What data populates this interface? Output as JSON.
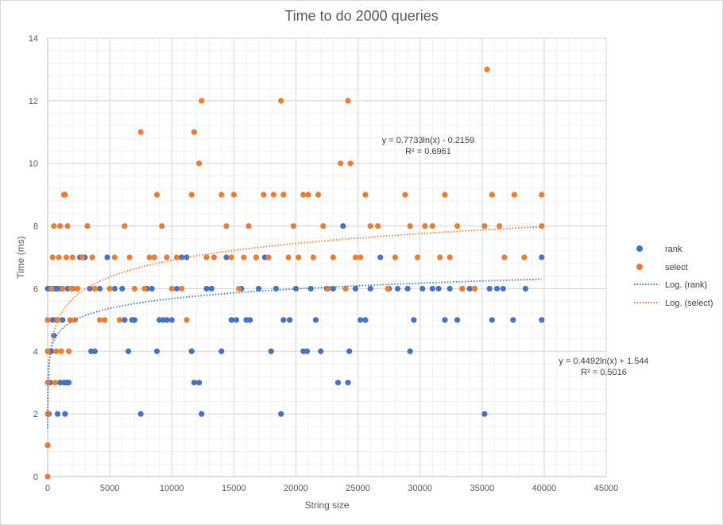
{
  "chart_data": {
    "type": "scatter",
    "title": "Time to do 2000 queries",
    "xlabel": "String size",
    "ylabel": "Time (ms)",
    "xlim": [
      0,
      45000
    ],
    "ylim": [
      0,
      14
    ],
    "x_ticks": [
      0,
      5000,
      10000,
      15000,
      20000,
      25000,
      30000,
      35000,
      40000,
      45000
    ],
    "y_ticks": [
      0,
      2,
      4,
      6,
      8,
      10,
      12,
      14
    ],
    "grid": true,
    "legend_position": "right",
    "colors": {
      "rank": "#4472c4",
      "select": "#ed7d31"
    },
    "series": [
      {
        "name": "rank",
        "color": "#4472c4",
        "points": [
          [
            0,
            1
          ],
          [
            0,
            2
          ],
          [
            0,
            3
          ],
          [
            0,
            4
          ],
          [
            0,
            5
          ],
          [
            0,
            6
          ],
          [
            100,
            2
          ],
          [
            200,
            3
          ],
          [
            300,
            4
          ],
          [
            400,
            5
          ],
          [
            500,
            4.5
          ],
          [
            600,
            6
          ],
          [
            700,
            5
          ],
          [
            800,
            2
          ],
          [
            1000,
            3
          ],
          [
            1200,
            5
          ],
          [
            1300,
            3
          ],
          [
            1500,
            3
          ],
          [
            1600,
            3
          ],
          [
            1700,
            3
          ],
          [
            1400,
            2
          ],
          [
            200,
            6
          ],
          [
            400,
            6
          ],
          [
            800,
            6
          ],
          [
            1100,
            6
          ],
          [
            1600,
            6
          ],
          [
            2000,
            6
          ],
          [
            2400,
            6
          ],
          [
            2600,
            7
          ],
          [
            3000,
            7
          ],
          [
            3400,
            6
          ],
          [
            3500,
            4
          ],
          [
            3800,
            4
          ],
          [
            4200,
            6
          ],
          [
            4800,
            7
          ],
          [
            5400,
            6
          ],
          [
            6000,
            6
          ],
          [
            6200,
            5
          ],
          [
            6500,
            4
          ],
          [
            6800,
            5
          ],
          [
            7000,
            5
          ],
          [
            7500,
            2
          ],
          [
            8000,
            6
          ],
          [
            8400,
            6
          ],
          [
            8800,
            4
          ],
          [
            9000,
            5
          ],
          [
            9300,
            5
          ],
          [
            9600,
            5
          ],
          [
            10000,
            5
          ],
          [
            10400,
            6
          ],
          [
            10800,
            7
          ],
          [
            11200,
            7
          ],
          [
            11600,
            4
          ],
          [
            11800,
            3
          ],
          [
            12200,
            3
          ],
          [
            12400,
            2
          ],
          [
            12800,
            6
          ],
          [
            13200,
            6
          ],
          [
            14000,
            4
          ],
          [
            14400,
            7
          ],
          [
            14800,
            5
          ],
          [
            15200,
            5
          ],
          [
            15600,
            6
          ],
          [
            16000,
            5
          ],
          [
            16300,
            5
          ],
          [
            17000,
            6
          ],
          [
            17500,
            7
          ],
          [
            18000,
            4
          ],
          [
            18400,
            6
          ],
          [
            18800,
            2
          ],
          [
            19000,
            5
          ],
          [
            19500,
            5
          ],
          [
            20000,
            6
          ],
          [
            20600,
            4
          ],
          [
            20900,
            4
          ],
          [
            21200,
            6
          ],
          [
            21600,
            5
          ],
          [
            22000,
            4
          ],
          [
            22500,
            6
          ],
          [
            23000,
            6
          ],
          [
            23400,
            3
          ],
          [
            23800,
            8
          ],
          [
            24200,
            3
          ],
          [
            24300,
            4
          ],
          [
            24800,
            6
          ],
          [
            25200,
            5
          ],
          [
            25600,
            5
          ],
          [
            26000,
            6
          ],
          [
            26800,
            7
          ],
          [
            27500,
            6
          ],
          [
            28200,
            6
          ],
          [
            29000,
            6
          ],
          [
            29200,
            4
          ],
          [
            29500,
            5
          ],
          [
            30200,
            6
          ],
          [
            31000,
            6
          ],
          [
            31500,
            6
          ],
          [
            32000,
            5
          ],
          [
            32400,
            6
          ],
          [
            33000,
            5
          ],
          [
            33400,
            6
          ],
          [
            34000,
            6
          ],
          [
            35200,
            2
          ],
          [
            35600,
            6
          ],
          [
            35800,
            5
          ],
          [
            36200,
            6
          ],
          [
            36700,
            6
          ],
          [
            37500,
            5
          ],
          [
            38500,
            6
          ],
          [
            39800,
            7
          ],
          [
            39800,
            5
          ]
        ]
      },
      {
        "name": "select",
        "color": "#ed7d31",
        "points": [
          [
            0,
            0
          ],
          [
            0,
            1
          ],
          [
            0,
            2
          ],
          [
            0,
            3
          ],
          [
            0,
            4
          ],
          [
            0,
            5
          ],
          [
            300,
            6
          ],
          [
            400,
            7
          ],
          [
            500,
            8
          ],
          [
            600,
            3
          ],
          [
            700,
            4
          ],
          [
            800,
            5
          ],
          [
            900,
            7
          ],
          [
            1000,
            8
          ],
          [
            1100,
            4
          ],
          [
            1200,
            6
          ],
          [
            1300,
            9
          ],
          [
            1400,
            9
          ],
          [
            1500,
            7
          ],
          [
            1600,
            8
          ],
          [
            1700,
            4
          ],
          [
            1800,
            5
          ],
          [
            1900,
            6
          ],
          [
            2000,
            7
          ],
          [
            2200,
            5
          ],
          [
            2400,
            6
          ],
          [
            2800,
            7
          ],
          [
            3200,
            8
          ],
          [
            3600,
            7
          ],
          [
            3800,
            6
          ],
          [
            4200,
            5
          ],
          [
            4600,
            5
          ],
          [
            5000,
            6
          ],
          [
            5400,
            7
          ],
          [
            5800,
            5
          ],
          [
            6200,
            8
          ],
          [
            6600,
            7
          ],
          [
            7000,
            6
          ],
          [
            7500,
            11
          ],
          [
            7800,
            6
          ],
          [
            8200,
            7
          ],
          [
            8600,
            7
          ],
          [
            8800,
            9
          ],
          [
            9200,
            8
          ],
          [
            9600,
            7
          ],
          [
            10000,
            6
          ],
          [
            10400,
            7
          ],
          [
            10800,
            6
          ],
          [
            11200,
            5
          ],
          [
            11600,
            9
          ],
          [
            11800,
            11
          ],
          [
            12200,
            10
          ],
          [
            12400,
            12
          ],
          [
            12800,
            7
          ],
          [
            13400,
            7
          ],
          [
            14000,
            9
          ],
          [
            14400,
            8
          ],
          [
            14800,
            7
          ],
          [
            15000,
            9
          ],
          [
            15400,
            6
          ],
          [
            15800,
            7
          ],
          [
            16200,
            8
          ],
          [
            16800,
            7
          ],
          [
            17400,
            9
          ],
          [
            17800,
            7
          ],
          [
            18200,
            9
          ],
          [
            18800,
            12
          ],
          [
            19000,
            9
          ],
          [
            19400,
            7
          ],
          [
            19800,
            8
          ],
          [
            20200,
            7
          ],
          [
            20600,
            9
          ],
          [
            21000,
            9
          ],
          [
            21400,
            7
          ],
          [
            21800,
            9
          ],
          [
            22200,
            8
          ],
          [
            22600,
            6
          ],
          [
            23000,
            7
          ],
          [
            23600,
            10
          ],
          [
            24000,
            6
          ],
          [
            24200,
            12
          ],
          [
            24400,
            10
          ],
          [
            24800,
            7
          ],
          [
            25200,
            7
          ],
          [
            25600,
            9
          ],
          [
            26000,
            8
          ],
          [
            26600,
            8
          ],
          [
            27400,
            6
          ],
          [
            28000,
            7
          ],
          [
            28800,
            9
          ],
          [
            29200,
            8
          ],
          [
            29800,
            7
          ],
          [
            30400,
            8
          ],
          [
            31000,
            8
          ],
          [
            31600,
            7
          ],
          [
            32000,
            9
          ],
          [
            32400,
            7
          ],
          [
            33000,
            8
          ],
          [
            33400,
            6
          ],
          [
            34400,
            6
          ],
          [
            35200,
            8
          ],
          [
            35400,
            13
          ],
          [
            35800,
            9
          ],
          [
            36400,
            8
          ],
          [
            36800,
            7
          ],
          [
            37600,
            9
          ],
          [
            38400,
            7
          ],
          [
            39800,
            8
          ],
          [
            39800,
            9
          ]
        ]
      }
    ],
    "legend": [
      {
        "label": "rank",
        "kind": "marker",
        "color": "#4472c4"
      },
      {
        "label": "select",
        "kind": "marker",
        "color": "#ed7d31"
      },
      {
        "label": "Log. (rank)",
        "kind": "dotted-line",
        "color": "#4472c4"
      },
      {
        "label": "Log. (select)",
        "kind": "dotted-line",
        "color": "#ed7d31"
      }
    ],
    "trendlines": [
      {
        "name": "Log. (select)",
        "color": "#ed7d31",
        "a": 0.7733,
        "b": -0.2159,
        "x_range": [
          20,
          39800
        ],
        "equation": "y = 0.7733ln(x) - 0.2159",
        "r2": "R² = 0.6961"
      },
      {
        "name": "Log. (rank)",
        "color": "#4472c4",
        "a": 0.4492,
        "b": 1.544,
        "x_range": [
          1,
          39800
        ],
        "equation": "y = 0.4492ln(x) + 1.544",
        "r2": "R² = 0.5016"
      }
    ]
  }
}
